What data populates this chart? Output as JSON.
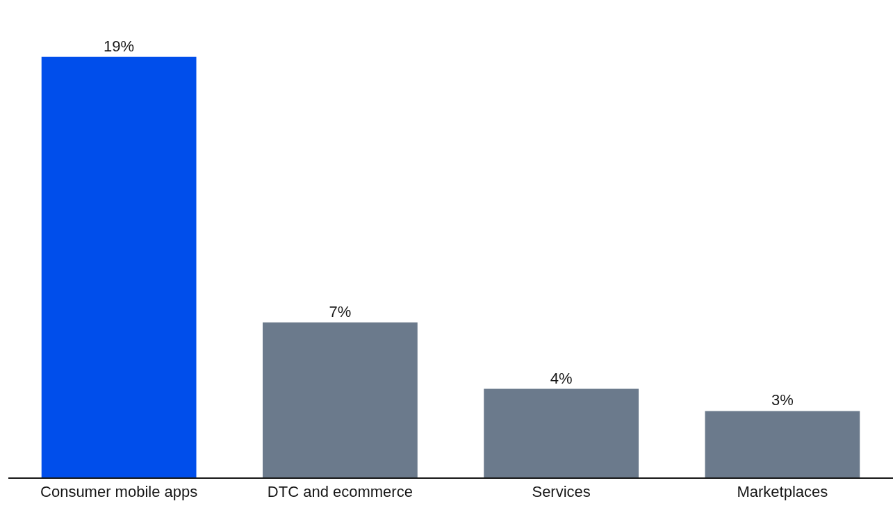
{
  "chart_data": {
    "type": "bar",
    "categories": [
      "Consumer mobile apps",
      "DTC and ecommerce",
      "Services",
      "Marketplaces"
    ],
    "values": [
      19,
      7,
      4,
      3
    ],
    "colors": [
      "#004eeb",
      "#6b7a8c",
      "#6b7a8c",
      "#6b7a8c"
    ],
    "value_labels": [
      "19%",
      "7%",
      "4%",
      "3%"
    ],
    "grid": false,
    "legend": false
  }
}
